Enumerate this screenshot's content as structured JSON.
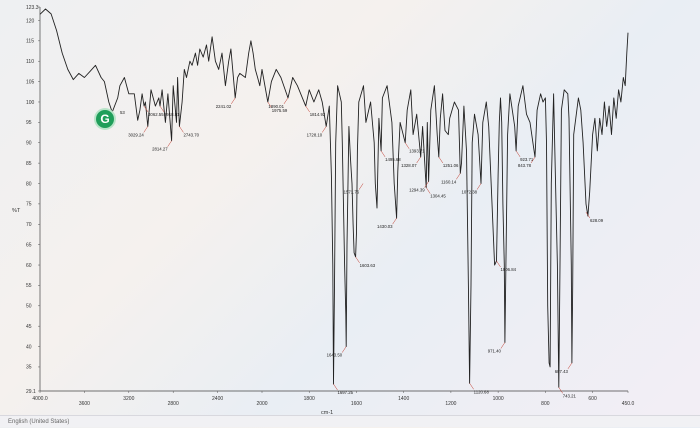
{
  "chart_data": {
    "type": "line",
    "ylabel": "%T",
    "xlabel": "cm-1",
    "xlim": [
      4000,
      450
    ],
    "ylim": [
      29.1,
      123.3
    ],
    "x_ticks": [
      "4000.0",
      "3600",
      "3200",
      "2800",
      "2400",
      "2000",
      "1800",
      "1600",
      "1400",
      "1200",
      "1000",
      "800",
      "600",
      "450.0"
    ],
    "y_ticks": [
      "123.3",
      "120",
      "115",
      "110",
      "105",
      "100",
      "95",
      "90",
      "85",
      "80",
      "75",
      "70",
      "65",
      "60",
      "55",
      "50",
      "45",
      "40",
      "35",
      "29.1"
    ],
    "series": [
      {
        "points": [
          [
            4000,
            121.5
          ],
          [
            3950,
            122.8
          ],
          [
            3900,
            121.6
          ],
          [
            3850,
            117.5
          ],
          [
            3800,
            112
          ],
          [
            3750,
            108
          ],
          [
            3700,
            105.5
          ],
          [
            3650,
            107
          ],
          [
            3600,
            106
          ],
          [
            3550,
            107.5
          ],
          [
            3500,
            109
          ],
          [
            3450,
            106
          ],
          [
            3420,
            105
          ],
          [
            3380,
            100
          ],
          [
            3350,
            97.5
          ],
          [
            3300,
            101
          ],
          [
            3280,
            104
          ],
          [
            3240,
            106
          ],
          [
            3200,
            102
          ],
          [
            3150,
            102
          ],
          [
            3120,
            95.5
          ],
          [
            3100,
            98
          ],
          [
            3080,
            102
          ],
          [
            3062.55,
            99
          ],
          [
            3050,
            100
          ],
          [
            3029.24,
            94
          ],
          [
            3000,
            103
          ],
          [
            2960,
            99
          ],
          [
            2930,
            101
          ],
          [
            2918.81,
            99
          ],
          [
            2900,
            103
          ],
          [
            2870,
            95
          ],
          [
            2848,
            102
          ],
          [
            2814.27,
            90.5
          ],
          [
            2800,
            104
          ],
          [
            2770,
            95
          ],
          [
            2760,
            106
          ],
          [
            2743.7,
            94
          ],
          [
            2720,
            100
          ],
          [
            2700,
            108
          ],
          [
            2680,
            106
          ],
          [
            2650,
            110
          ],
          [
            2630,
            109
          ],
          [
            2600,
            112
          ],
          [
            2580,
            109
          ],
          [
            2560,
            113
          ],
          [
            2530,
            111
          ],
          [
            2500,
            114
          ],
          [
            2480,
            110
          ],
          [
            2450,
            116
          ],
          [
            2420,
            110
          ],
          [
            2390,
            108
          ],
          [
            2360,
            112
          ],
          [
            2330,
            104
          ],
          [
            2300,
            110
          ],
          [
            2280,
            113
          ],
          [
            2241.02,
            101
          ],
          [
            2220,
            106
          ],
          [
            2200,
            107
          ],
          [
            2150,
            106
          ],
          [
            2120,
            112
          ],
          [
            2100,
            115
          ],
          [
            2080,
            112
          ],
          [
            2060,
            108
          ],
          [
            2040,
            106
          ],
          [
            2020,
            104
          ],
          [
            2000,
            108
          ],
          [
            1975.59,
            100
          ],
          [
            1960,
            105
          ],
          [
            1940,
            108
          ],
          [
            1920,
            106
          ],
          [
            1890.01,
            101
          ],
          [
            1870,
            106
          ],
          [
            1850,
            104
          ],
          [
            1814.92,
            99
          ],
          [
            1800,
            103
          ],
          [
            1780,
            100
          ],
          [
            1760,
            103
          ],
          [
            1745,
            100
          ],
          [
            1728.1,
            94
          ],
          [
            1715,
            99
          ],
          [
            1706,
            82
          ],
          [
            1700,
            60
          ],
          [
            1697.25,
            30.8
          ],
          [
            1693,
            55
          ],
          [
            1688,
            90
          ],
          [
            1680,
            104
          ],
          [
            1664,
            100
          ],
          [
            1660,
            90
          ],
          [
            1650,
            60
          ],
          [
            1645,
            48
          ],
          [
            1643.5,
            40
          ],
          [
            1640,
            65
          ],
          [
            1632,
            94
          ],
          [
            1625,
            86
          ],
          [
            1619,
            80
          ],
          [
            1614,
            70
          ],
          [
            1610,
            63
          ],
          [
            1603.63,
            62
          ],
          [
            1600,
            68
          ],
          [
            1596,
            88
          ],
          [
            1590,
            100
          ],
          [
            1570,
            104
          ],
          [
            1560,
            95
          ],
          [
            1540,
            100
          ],
          [
            1525,
            90
          ],
          [
            1520,
            80
          ],
          [
            1513,
            74
          ],
          [
            1510,
            82
          ],
          [
            1505,
            96
          ],
          [
            1495.68,
            88
          ],
          [
            1490,
            101
          ],
          [
            1470,
            104
          ],
          [
            1450,
            95
          ],
          [
            1440,
            80
          ],
          [
            1430.03,
            71.5
          ],
          [
            1425,
            83
          ],
          [
            1415,
            95
          ],
          [
            1393.71,
            90
          ],
          [
            1385,
            98
          ],
          [
            1370,
            103
          ],
          [
            1360,
            92
          ],
          [
            1345,
            97
          ],
          [
            1328.07,
            86.5
          ],
          [
            1320,
            94
          ],
          [
            1304.45,
            79
          ],
          [
            1300,
            95
          ],
          [
            1294.39,
            80.5
          ],
          [
            1285,
            98
          ],
          [
            1270,
            104
          ],
          [
            1258,
            92
          ],
          [
            1251.06,
            86.5
          ],
          [
            1245,
            96
          ],
          [
            1235,
            102
          ],
          [
            1225,
            93
          ],
          [
            1211,
            92
          ],
          [
            1205,
            96
          ],
          [
            1185,
            100
          ],
          [
            1168,
            98
          ],
          [
            1160.14,
            82.5
          ],
          [
            1155,
            85
          ],
          [
            1145,
            99
          ],
          [
            1134,
            88
          ],
          [
            1126,
            55
          ],
          [
            1120.68,
            31
          ],
          [
            1115,
            55
          ],
          [
            1110,
            90
          ],
          [
            1100,
            97
          ],
          [
            1085,
            92
          ],
          [
            1072.38,
            80
          ],
          [
            1065,
            95
          ],
          [
            1050,
            100
          ],
          [
            1040,
            94
          ],
          [
            1028,
            78
          ],
          [
            1015,
            60
          ],
          [
            1006.84,
            61
          ],
          [
            1000,
            82
          ],
          [
            995,
            95
          ],
          [
            990,
            101
          ],
          [
            985,
            95
          ],
          [
            980,
            75
          ],
          [
            974,
            60
          ],
          [
            971.4,
            41
          ],
          [
            967,
            60
          ],
          [
            960,
            92
          ],
          [
            950,
            102
          ],
          [
            930,
            94
          ],
          [
            923.71,
            88
          ],
          [
            915,
            99
          ],
          [
            895,
            104
          ],
          [
            880,
            97
          ],
          [
            865,
            95
          ],
          [
            850,
            89
          ],
          [
            843.78,
            86.5
          ],
          [
            835,
            98
          ],
          [
            820,
            102
          ],
          [
            810,
            100
          ],
          [
            800,
            101
          ],
          [
            795,
            90
          ],
          [
            790,
            50
          ],
          [
            784,
            36
          ],
          [
            780,
            35
          ],
          [
            775,
            80
          ],
          [
            765,
            102
          ],
          [
            755,
            75
          ],
          [
            749,
            60
          ],
          [
            743.21,
            30
          ],
          [
            738,
            60
          ],
          [
            732,
            98
          ],
          [
            720,
            103
          ],
          [
            705,
            102
          ],
          [
            700,
            96
          ],
          [
            690,
            60
          ],
          [
            687.43,
            36
          ],
          [
            684,
            55
          ],
          [
            680,
            92
          ],
          [
            660,
            101
          ],
          [
            650,
            98
          ],
          [
            640,
            90
          ],
          [
            628,
            75
          ],
          [
            620,
            72
          ],
          [
            612,
            78
          ],
          [
            600,
            92
          ],
          [
            590,
            96
          ],
          [
            580,
            88
          ],
          [
            570,
            96
          ],
          [
            560,
            92
          ],
          [
            550,
            100
          ],
          [
            540,
            94
          ],
          [
            530,
            99
          ],
          [
            520,
            92
          ],
          [
            510,
            101
          ],
          [
            500,
            96
          ],
          [
            490,
            103
          ],
          [
            480,
            100
          ],
          [
            470,
            106
          ],
          [
            462,
            104
          ],
          [
            455,
            112
          ],
          [
            450,
            117
          ]
        ]
      }
    ],
    "annotations": [
      {
        "label": "3062.55",
        "x": 3062.55,
        "y": 99
      },
      {
        "label": "3029.24",
        "x": 3029.24,
        "y": 94
      },
      {
        "label": "2918.81",
        "x": 2918.81,
        "y": 99
      },
      {
        "label": "2814.27",
        "x": 2814.27,
        "y": 90.5
      },
      {
        "label": "2743.70",
        "x": 2743.7,
        "y": 94
      },
      {
        "label": "2241.02",
        "x": 2241.02,
        "y": 101
      },
      {
        "label": "1975.59",
        "x": 1975.59,
        "y": 100
      },
      {
        "label": "1890.01",
        "x": 1890.01,
        "y": 101
      },
      {
        "label": "1814.92",
        "x": 1814.92,
        "y": 99
      },
      {
        "label": "1728.10",
        "x": 1728.1,
        "y": 94
      },
      {
        "label": "1697.25",
        "x": 1697.25,
        "y": 30.8
      },
      {
        "label": "1643.50",
        "x": 1643.5,
        "y": 40
      },
      {
        "label": "1603.63",
        "x": 1603.63,
        "y": 62
      },
      {
        "label": "1571.76",
        "x": 1571.76,
        "y": 80
      },
      {
        "label": "1495.68",
        "x": 1495.68,
        "y": 88
      },
      {
        "label": "1430.03",
        "x": 1430.03,
        "y": 71.5
      },
      {
        "label": "1393.71",
        "x": 1393.71,
        "y": 90
      },
      {
        "label": "1328.07",
        "x": 1328.07,
        "y": 86.5
      },
      {
        "label": "1304.45",
        "x": 1304.45,
        "y": 79
      },
      {
        "label": "1294.39",
        "x": 1294.39,
        "y": 80.5
      },
      {
        "label": "1251.06",
        "x": 1251.06,
        "y": 86.5
      },
      {
        "label": "1160.14",
        "x": 1160.14,
        "y": 82.5
      },
      {
        "label": "1120.68",
        "x": 1120.68,
        "y": 31
      },
      {
        "label": "1072.38",
        "x": 1072.38,
        "y": 80
      },
      {
        "label": "1006.84",
        "x": 1006.84,
        "y": 61
      },
      {
        "label": "971.40",
        "x": 971.4,
        "y": 41
      },
      {
        "label": "923.71",
        "x": 923.71,
        "y": 88
      },
      {
        "label": "843.78",
        "x": 843.78,
        "y": 86.5
      },
      {
        "label": "743.21",
        "x": 743.21,
        "y": 30
      },
      {
        "label": "687.43",
        "x": 687.43,
        "y": 36
      },
      {
        "label": "628.09",
        "x": 628.09,
        "y": 73
      }
    ],
    "grid": false,
    "legend": "none",
    "line_color": "#222222",
    "marker_line_color": "#c0392b"
  },
  "overlay": {
    "badge_letter": "G",
    "badge_color": "#1f9e5a",
    "fragment_text": "53"
  },
  "status_bar": {
    "language": "English (United States)"
  }
}
